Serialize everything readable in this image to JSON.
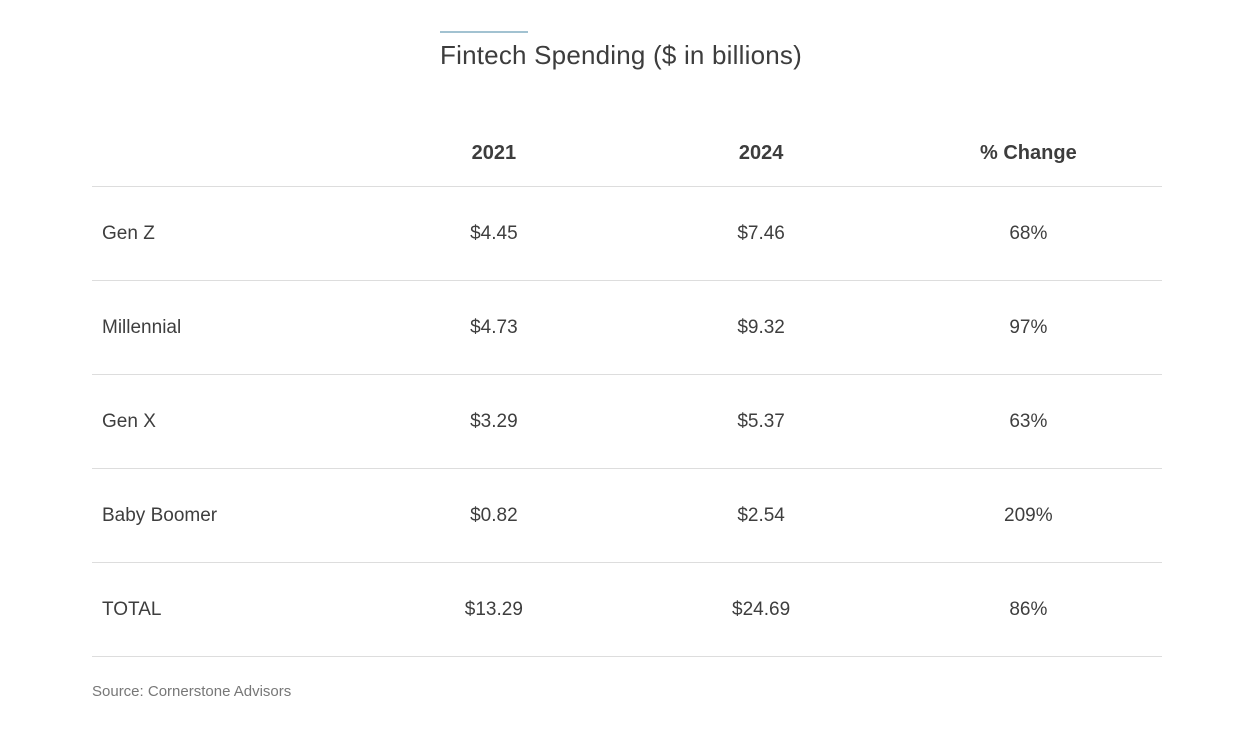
{
  "title": "Fintech Spending ($ in billions)",
  "accent_color": "#a2c2d1",
  "divider_color": "#dddddd",
  "text_color": "#3d3d3d",
  "source_color": "#777777",
  "table": {
    "columns": [
      "",
      "2021",
      "2024",
      "% Change"
    ],
    "rows": [
      [
        "Gen Z",
        "$4.45",
        "$7.46",
        "68%"
      ],
      [
        "Millennial",
        "$4.73",
        "$9.32",
        "97%"
      ],
      [
        "Gen X",
        "$3.29",
        "$5.37",
        "63%"
      ],
      [
        "Baby Boomer",
        "$0.82",
        "$2.54",
        "209%"
      ],
      [
        "TOTAL",
        "$13.29",
        "$24.69",
        "86%"
      ]
    ]
  },
  "source": "Source: Cornerstone Advisors",
  "chart_data": {
    "type": "table",
    "title": "Fintech Spending ($ in billions)",
    "columns": [
      "",
      "2021",
      "2024",
      "% Change"
    ],
    "rows": [
      {
        "group": "Gen Z",
        "2021": 4.45,
        "2024": 7.46,
        "pct_change": "68%"
      },
      {
        "group": "Millennial",
        "2021": 4.73,
        "2024": 9.32,
        "pct_change": "97%"
      },
      {
        "group": "Gen X",
        "2021": 3.29,
        "2024": 5.37,
        "pct_change": "63%"
      },
      {
        "group": "Baby Boomer",
        "2021": 0.82,
        "2024": 2.54,
        "pct_change": "209%"
      },
      {
        "group": "TOTAL",
        "2021": 13.29,
        "2024": 24.69,
        "pct_change": "86%"
      }
    ],
    "source": "Source: Cornerstone Advisors"
  }
}
